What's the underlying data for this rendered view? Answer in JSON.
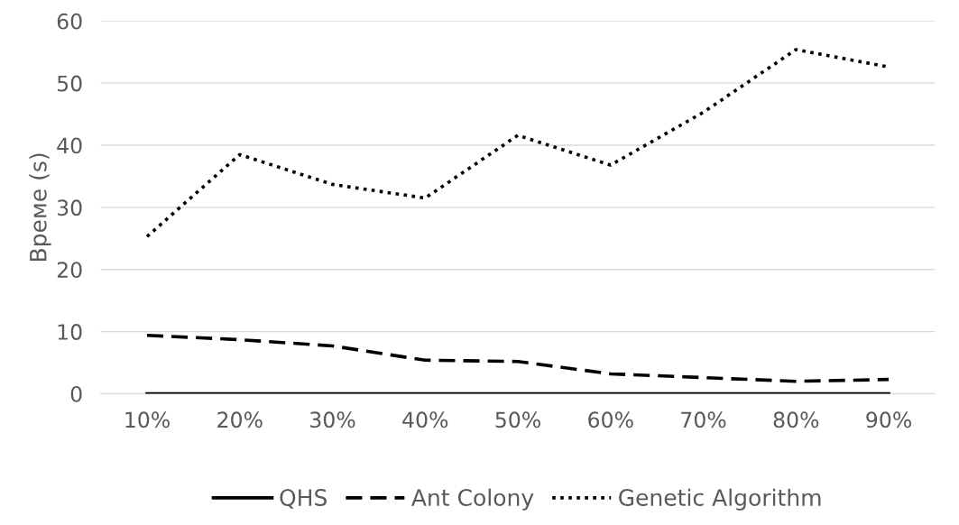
{
  "chart_data": {
    "type": "line",
    "ylabel": "Време (s)",
    "categories": [
      "10%",
      "20%",
      "30%",
      "40%",
      "50%",
      "60%",
      "70%",
      "80%",
      "90%"
    ],
    "series": [
      {
        "name": "QHS",
        "color": "#000000",
        "line_style": "solid",
        "values": [
          0,
          0,
          0,
          0,
          0,
          0,
          0,
          0,
          0
        ]
      },
      {
        "name": "Ant Colony",
        "color": "#000000",
        "line_style": "dashed",
        "values": [
          9.4,
          8.7,
          7.7,
          5.4,
          5.2,
          3.2,
          2.6,
          2.0,
          2.3
        ]
      },
      {
        "name": "Genetic Algorithm",
        "color": "#000000",
        "line_style": "dotted",
        "values": [
          25.3,
          38.5,
          33.7,
          31.5,
          41.6,
          36.8,
          45.3,
          55.4,
          52.6
        ]
      }
    ],
    "ylim": [
      0,
      60
    ],
    "yticks": [
      0,
      10,
      20,
      30,
      40,
      50,
      60
    ],
    "grid": "y",
    "legend": "bottom"
  }
}
